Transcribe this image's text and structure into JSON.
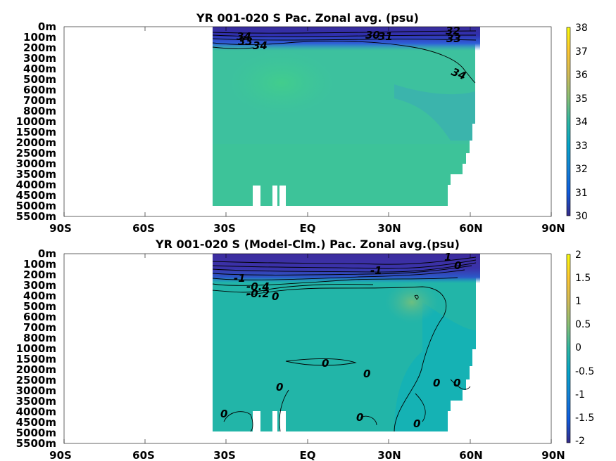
{
  "chart_data": [
    {
      "type": "heatmap",
      "title": "YR 001-020 S Pac. Zonal avg. (psu)",
      "y_tick_labels": [
        "0m",
        "100m",
        "200m",
        "300m",
        "400m",
        "500m",
        "600m",
        "700m",
        "800m",
        "1000m",
        "1500m",
        "2000m",
        "2500m",
        "3000m",
        "3500m",
        "4000m",
        "4500m",
        "5000m",
        "5500m"
      ],
      "x_tick_labels": [
        "90S",
        "60S",
        "30S",
        "EQ",
        "30N",
        "60N",
        "90N"
      ],
      "x_range": [
        -90,
        90
      ],
      "colorbar": {
        "min": 30,
        "max": 38,
        "tick_labels": [
          "38",
          "37",
          "36",
          "35",
          "34",
          "33",
          "32",
          "31",
          "30"
        ]
      },
      "data_extent": {
        "lat_start": -35,
        "lat_end": 62,
        "deepest": "5000m"
      },
      "field_summary": [
        {
          "region": "surface 0-100m",
          "value": 30.5
        },
        {
          "region": "100-200m",
          "value": 33.8
        },
        {
          "region": "subtropical intermediate core 30S-5N, 300-700m",
          "value": 34.6
        },
        {
          "region": "interior",
          "value": 34.6
        },
        {
          "region": "north pacific upper 400-1000m",
          "value": 34.0
        },
        {
          "region": "deep 2000-5000m",
          "value": 34.7
        }
      ],
      "contour_labels": [
        "34",
        "33",
        "34",
        "30",
        "31",
        "32",
        "33",
        "34"
      ]
    },
    {
      "type": "heatmap",
      "title": "YR 001-020 S (Model-Clm.) Pac. Zonal avg.(psu)",
      "y_tick_labels": [
        "0m",
        "100m",
        "200m",
        "300m",
        "400m",
        "500m",
        "600m",
        "700m",
        "800m",
        "1000m",
        "1500m",
        "2000m",
        "2500m",
        "3000m",
        "3500m",
        "4000m",
        "4500m",
        "5000m",
        "5500m"
      ],
      "x_tick_labels": [
        "90S",
        "60S",
        "30S",
        "EQ",
        "30N",
        "60N",
        "90N"
      ],
      "x_range": [
        -90,
        90
      ],
      "colorbar": {
        "min": -2,
        "max": 2,
        "tick_labels": [
          "2",
          "1.5",
          "1",
          "0.5",
          "0",
          "-0.5",
          "-1",
          "-1.5",
          "-2"
        ]
      },
      "data_extent": {
        "lat_start": -35,
        "lat_end": 62,
        "deepest": "5000m"
      },
      "field_summary": [
        {
          "region": "surface 0-100m",
          "value": -2.0
        },
        {
          "region": "100-200m",
          "value": -1.0
        },
        {
          "region": "200-400m",
          "value": -0.3
        },
        {
          "region": "interior",
          "value": 0.1
        },
        {
          "region": "subsurface maximum near 35N 400m",
          "value": 0.5
        },
        {
          "region": "deep",
          "value": 0.0
        }
      ],
      "contour_labels": [
        "-1",
        "-0.4",
        "-0.2",
        "0",
        "-1",
        "1",
        "0",
        "0",
        "0",
        "0",
        "0",
        "0",
        "0",
        "0",
        "0",
        "0",
        "0"
      ]
    }
  ]
}
